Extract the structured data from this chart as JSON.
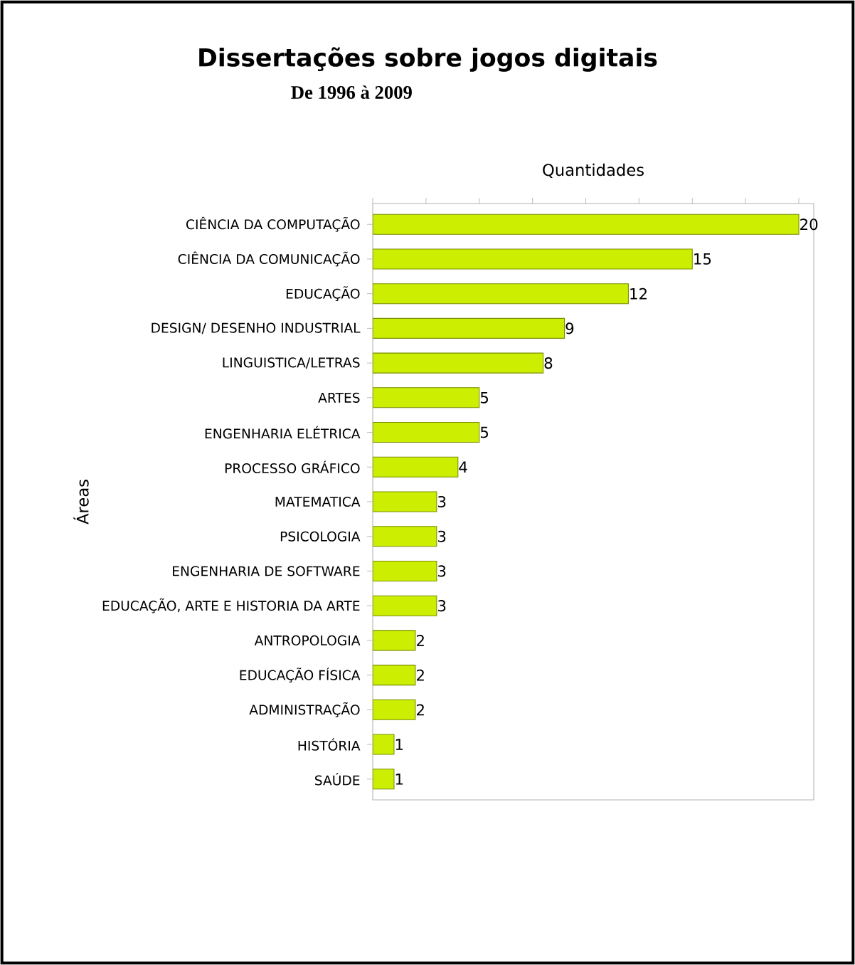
{
  "chart_data": {
    "type": "bar",
    "orientation": "horizontal",
    "title": "Dissertações sobre jogos digitais",
    "subtitle": "De 1996 à 2009",
    "xlabel": "Quantidades",
    "ylabel": "Áreas",
    "categories": [
      "CIÊNCIA DA COMPUTAÇÃO",
      "CIÊNCIA DA COMUNICAÇÃO",
      "EDUCAÇÃO",
      "DESIGN/ DESENHO INDUSTRIAL",
      "LINGUISTICA/LETRAS",
      "ARTES",
      "ENGENHARIA ELÉTRICA",
      "PROCESSO GRÁFICO",
      "MATEMATICA",
      "PSICOLOGIA",
      "ENGENHARIA DE SOFTWARE",
      "EDUCAÇÃO, ARTE E HISTORIA DA ARTE",
      "ANTROPOLOGIA",
      "EDUCAÇÃO FÍSICA",
      "ADMINISTRAÇÃO",
      "HISTÓRIA",
      "SAÚDE"
    ],
    "values": [
      20,
      15,
      12,
      9,
      8,
      5,
      5,
      4,
      3,
      3,
      3,
      3,
      2,
      2,
      2,
      1,
      1
    ],
    "color": "#ccee00",
    "data_labels": true,
    "grid": false,
    "tick_labels": "y",
    "xlim": [
      0,
      20.7
    ],
    "xticks": [
      {
        "value": 0,
        "label": null
      },
      {
        "value": 2.5,
        "label": null
      },
      {
        "value": 5,
        "label": null
      },
      {
        "value": 7.5,
        "label": null
      },
      {
        "value": 10,
        "label": null
      },
      {
        "value": 12.5,
        "label": null
      },
      {
        "value": 15,
        "label": null
      },
      {
        "value": 17.5,
        "label": null
      },
      {
        "value": 20,
        "label": null
      }
    ]
  }
}
